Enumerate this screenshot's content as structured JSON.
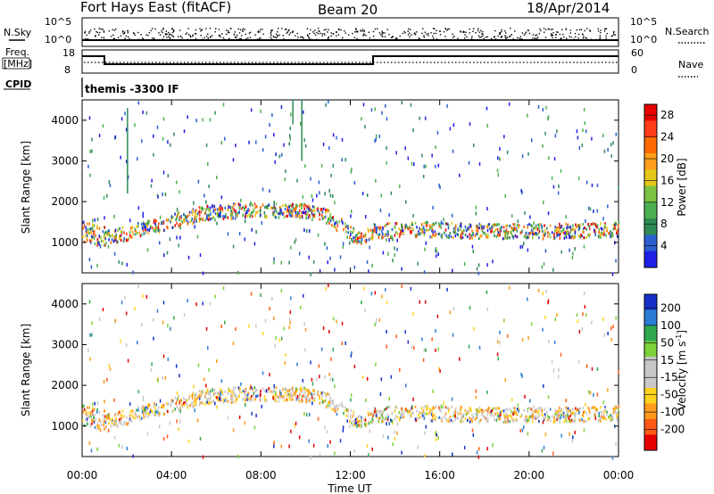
{
  "header": {
    "station": "Fort Hays East (fitACF)",
    "beam": "Beam 20",
    "date": "18/Apr/2014"
  },
  "side_labels": {
    "nsky": "N.Sky",
    "nsearch": "N.Search",
    "freq_line1": "Freq.",
    "freq_line2": "[MHz]",
    "nave": "Nave",
    "cpid": "CPID",
    "cpid_value": "themis -3300 IF"
  },
  "noise_axis": {
    "left_ticks": [
      "10^5",
      "10^0"
    ],
    "right_ticks": [
      "10^5",
      "10^0"
    ]
  },
  "freq_axis": {
    "left_ticks": [
      "18",
      "8"
    ],
    "right_ticks": [
      "60",
      "0"
    ]
  },
  "colors": {
    "power_scale": [
      "#1f1fe6",
      "#2a5fd0",
      "#2e8b57",
      "#4caf50",
      "#7cc242",
      "#e6c619",
      "#ff9f1a",
      "#ff6a00",
      "#ff3b1a",
      "#e60000"
    ],
    "velocity_scale": [
      "#1830c8",
      "#2b7dd4",
      "#2fa84f",
      "#7cd23a",
      "#c8c8c8",
      "#c8c8c8",
      "#ffd21e",
      "#ff9a1a",
      "#ff5a14",
      "#e60000"
    ]
  },
  "chart_data": [
    {
      "type": "heatmap",
      "panel": "power",
      "ylabel": "Slant Range [km]",
      "yticks": [
        "1000",
        "2000",
        "3000",
        "4000"
      ],
      "ylim": [
        250,
        4500
      ],
      "xlim": [
        0,
        24
      ],
      "colorbar_label": "Power [dB]",
      "colorbar_ticks": [
        "4",
        "8",
        "12",
        "16",
        "20",
        "24",
        "28"
      ],
      "colorbar_range": [
        0,
        30
      ],
      "main_band_range_km": [
        [
          0,
          1300
        ],
        [
          1,
          1150
        ],
        [
          2,
          1250
        ],
        [
          4,
          1550
        ],
        [
          5.5,
          1750
        ],
        [
          7,
          1800
        ],
        [
          8.5,
          1820
        ],
        [
          10,
          1800
        ],
        [
          11,
          1650
        ],
        [
          12,
          1250
        ],
        [
          12.5,
          1100
        ],
        [
          13,
          1300
        ],
        [
          15,
          1350
        ],
        [
          18,
          1300
        ],
        [
          21,
          1300
        ],
        [
          24,
          1350
        ]
      ]
    },
    {
      "type": "heatmap",
      "panel": "velocity",
      "ylabel": "Slant Range [km]",
      "yticks": [
        "1000",
        "2000",
        "3000",
        "4000"
      ],
      "ylim": [
        250,
        4500
      ],
      "xlim": [
        0,
        24
      ],
      "xticks": [
        "00:00",
        "04:00",
        "08:00",
        "12:00",
        "16:00",
        "20:00",
        "00:00"
      ],
      "xlabel": "Time UT",
      "colorbar_label": "Velocity [m s^-1]",
      "colorbar_ticks": [
        "200",
        "100",
        "50",
        "15",
        "-15",
        "-50",
        "-100",
        "-200"
      ],
      "colorbar_range": [
        -250,
        250
      ]
    }
  ]
}
